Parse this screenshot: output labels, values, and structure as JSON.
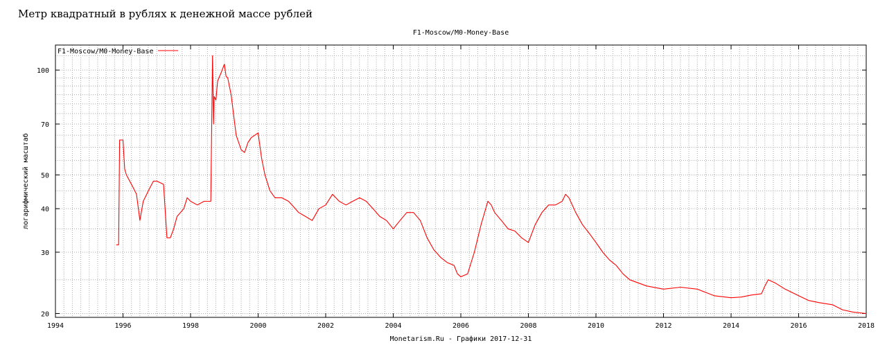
{
  "page": {
    "heading": "Метр квадратный в рублях к денежной массе рублей"
  },
  "chart_data": {
    "type": "line",
    "title": "F1-Moscow/M0-Money-Base",
    "xlabel": "Monetarism.Ru - Графики  2017-12-31",
    "ylabel": "логарифмический масштаб",
    "yscale": "log",
    "xlim": [
      1994,
      2018
    ],
    "ylim": [
      19.5,
      118
    ],
    "x_ticks": [
      1994,
      1996,
      1998,
      2000,
      2002,
      2004,
      2006,
      2008,
      2010,
      2012,
      2014,
      2016,
      2018
    ],
    "x_tick_labels": [
      "1994",
      "1996",
      "1998",
      "2000",
      "2002",
      "2004",
      "2006",
      "2008",
      "2010",
      "2012",
      "2014",
      "2016",
      "2018"
    ],
    "y_ticks": [
      20,
      30,
      40,
      50,
      70,
      100
    ],
    "y_tick_labels": [
      "20",
      "30",
      "40",
      "50",
      "70",
      "100"
    ],
    "grid": true,
    "legend_position": "top-left",
    "series": [
      {
        "name": "F1-Moscow/M0-Money-Base",
        "color": "#ff0000",
        "x": [
          1995.8,
          1995.85,
          1995.87,
          1995.9,
          1996.0,
          1996.05,
          1996.1,
          1996.3,
          1996.4,
          1996.5,
          1996.6,
          1996.8,
          1996.9,
          1997.0,
          1997.2,
          1997.3,
          1997.4,
          1997.5,
          1997.6,
          1997.8,
          1997.9,
          1998.0,
          1998.2,
          1998.4,
          1998.6,
          1998.65,
          1998.68,
          1998.7,
          1998.75,
          1998.8,
          1998.9,
          1999.0,
          1999.05,
          1999.1,
          1999.2,
          1999.35,
          1999.5,
          1999.6,
          1999.7,
          1999.8,
          1999.9,
          2000.0,
          2000.1,
          2000.2,
          2000.35,
          2000.5,
          2000.7,
          2000.9,
          2001.0,
          2001.2,
          2001.4,
          2001.6,
          2001.8,
          2002.0,
          2002.2,
          2002.4,
          2002.6,
          2002.8,
          2003.0,
          2003.2,
          2003.4,
          2003.6,
          2003.8,
          2004.0,
          2004.2,
          2004.4,
          2004.6,
          2004.8,
          2005.0,
          2005.2,
          2005.4,
          2005.6,
          2005.8,
          2005.9,
          2006.0,
          2006.2,
          2006.4,
          2006.6,
          2006.8,
          2006.9,
          2007.0,
          2007.2,
          2007.4,
          2007.6,
          2007.8,
          2008.0,
          2008.2,
          2008.4,
          2008.6,
          2008.8,
          2009.0,
          2009.1,
          2009.2,
          2009.4,
          2009.6,
          2009.8,
          2010.0,
          2010.2,
          2010.4,
          2010.6,
          2010.8,
          2011.0,
          2011.5,
          2012.0,
          2012.5,
          2013.0,
          2013.5,
          2014.0,
          2014.3,
          2014.6,
          2014.9,
          2015.0,
          2015.1,
          2015.3,
          2015.6,
          2016.0,
          2016.3,
          2016.6,
          2017.0,
          2017.3,
          2017.6,
          2018.0
        ],
        "values": [
          31.5,
          31.5,
          31.5,
          63,
          63,
          52,
          50,
          46,
          44,
          37,
          42,
          46,
          48,
          48,
          47,
          33,
          33,
          35,
          38,
          40,
          43,
          42,
          41,
          42,
          42,
          110,
          70,
          84,
          82,
          93,
          98,
          104,
          96,
          95,
          85,
          65,
          59,
          58,
          62,
          64,
          65,
          66,
          56,
          50,
          45,
          43,
          43,
          42,
          41,
          39,
          38,
          37,
          40,
          41,
          44,
          42,
          41,
          42,
          43,
          42,
          40,
          38,
          37,
          35,
          37,
          39,
          39,
          37,
          33,
          30.5,
          29,
          28,
          27.5,
          26,
          25.5,
          26,
          30,
          36,
          42,
          41,
          39,
          37,
          35,
          34.5,
          33,
          32,
          36,
          39,
          41,
          41,
          42,
          44,
          43,
          39,
          36,
          34,
          32,
          30,
          28.5,
          27.5,
          26,
          25,
          24,
          23.5,
          23.8,
          23.5,
          22.5,
          22.2,
          22.3,
          22.6,
          22.8,
          24,
          25,
          24.5,
          23.5,
          22.5,
          21.8,
          21.5,
          21.2,
          20.5,
          20.2,
          20
        ]
      }
    ]
  }
}
